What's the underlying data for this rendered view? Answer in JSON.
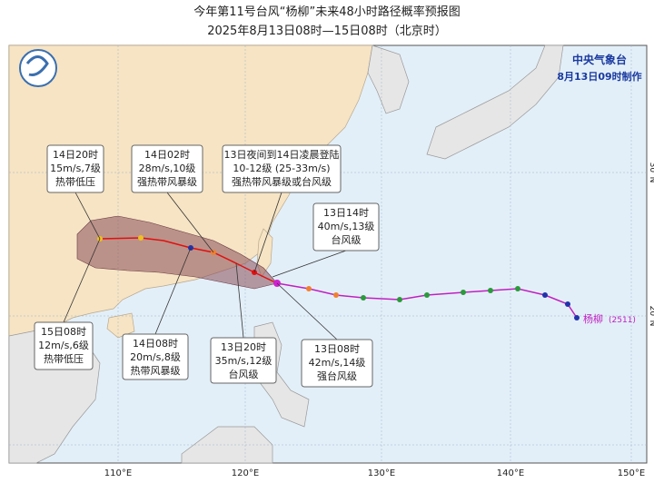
{
  "map": {
    "title": "今年第11号台风“杨柳”未来48小时路径概率预报图",
    "subtitle": "2025年8月13日08时—15日08时（北京时）",
    "agency": "中央气象台",
    "issued": "8月13日09时制作",
    "storm_label": "杨柳",
    "storm_code": "(2511)",
    "lon_labels": [
      "110°E",
      "120°E",
      "130°E",
      "140°E",
      "150°E"
    ],
    "lat_labels": [
      "20°N",
      "30°N"
    ],
    "callouts": [
      {
        "lines": [
          "14日20时",
          "15m/s,7级",
          "热带低压"
        ]
      },
      {
        "lines": [
          "14日02时",
          "28m/s,10级",
          "强热带风暴级"
        ]
      },
      {
        "lines": [
          "13日夜间到14日凌晨登陆",
          "10-12级 (25-33m/s)",
          "强热带风暴级或台风级"
        ]
      },
      {
        "lines": [
          "13日14时",
          "40m/s,13级",
          "台风级"
        ]
      },
      {
        "lines": [
          "15日08时",
          "12m/s,6级",
          "热带低压"
        ]
      },
      {
        "lines": [
          "14日08时",
          "20m/s,8级",
          "热带风暴级"
        ]
      },
      {
        "lines": [
          "13日20时",
          "35m/s,12级",
          "台风级"
        ]
      },
      {
        "lines": [
          "13日08时",
          "42m/s,14级",
          "强台风级"
        ]
      }
    ]
  }
}
